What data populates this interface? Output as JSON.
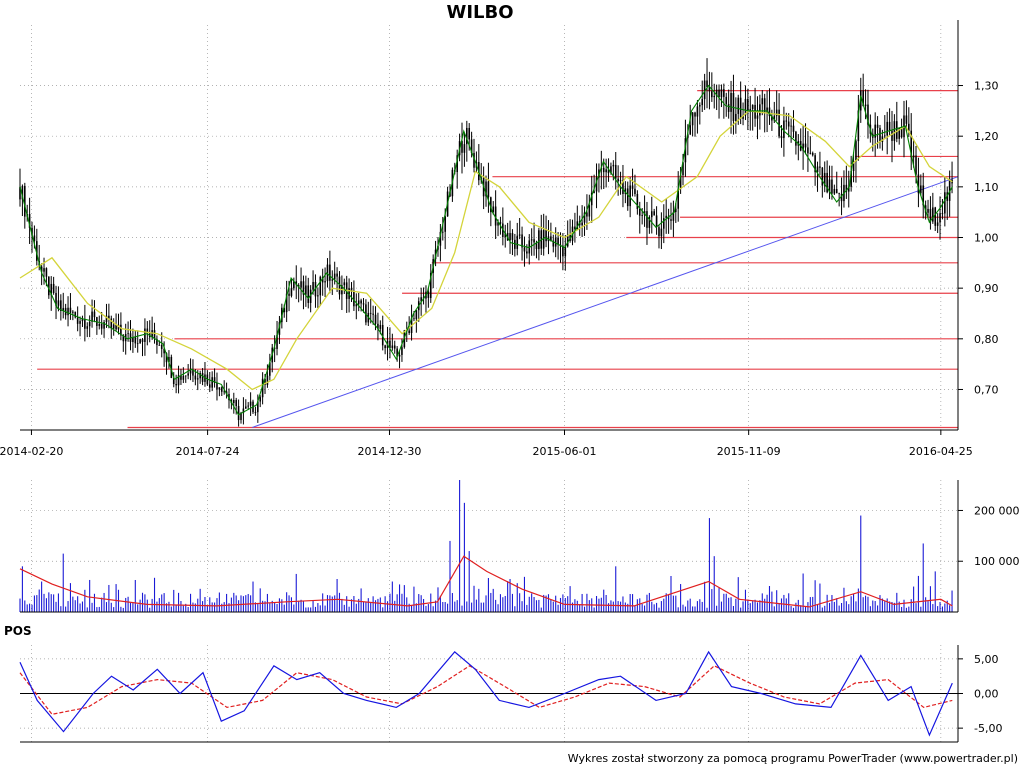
{
  "chart_data": {
    "type": "candlestick",
    "title": "WILBO",
    "price_axis": {
      "ticks": [
        "0,70",
        "0,80",
        "0,90",
        "1,00",
        "1,10",
        "1,20",
        "1,30"
      ],
      "tick_values": [
        0.7,
        0.8,
        0.9,
        1.0,
        1.1,
        1.2,
        1.3
      ],
      "range": [
        0.62,
        1.38
      ]
    },
    "date_axis": {
      "ticks": [
        "2014-02-20",
        "2014-07-24",
        "2014-12-30",
        "2015-06-01",
        "2015-11-09",
        "2016-04-25"
      ],
      "range": [
        "2014-02-10",
        "2016-05-10"
      ]
    },
    "price_series": [
      [
        "2014-02-10",
        1.1
      ],
      [
        "2014-03-01",
        0.93
      ],
      [
        "2014-03-15",
        0.86
      ],
      [
        "2014-04-05",
        0.84
      ],
      [
        "2014-04-25",
        0.83
      ],
      [
        "2014-05-15",
        0.8
      ],
      [
        "2014-06-01",
        0.81
      ],
      [
        "2014-06-15",
        0.79
      ],
      [
        "2014-06-25",
        0.72
      ],
      [
        "2014-07-10",
        0.74
      ],
      [
        "2014-07-24",
        0.72
      ],
      [
        "2014-08-05",
        0.71
      ],
      [
        "2014-08-20",
        0.65
      ],
      [
        "2014-09-05",
        0.67
      ],
      [
        "2014-09-20",
        0.78
      ],
      [
        "2014-10-05",
        0.92
      ],
      [
        "2014-10-20",
        0.88
      ],
      [
        "2014-11-05",
        0.93
      ],
      [
        "2014-11-20",
        0.9
      ],
      [
        "2014-12-05",
        0.86
      ],
      [
        "2014-12-20",
        0.82
      ],
      [
        "2015-01-05",
        0.76
      ],
      [
        "2015-01-20",
        0.85
      ],
      [
        "2015-02-01",
        0.89
      ],
      [
        "2015-02-20",
        1.08
      ],
      [
        "2015-03-05",
        1.21
      ],
      [
        "2015-03-15",
        1.15
      ],
      [
        "2015-03-30",
        1.05
      ],
      [
        "2015-04-15",
        0.99
      ],
      [
        "2015-05-01",
        0.98
      ],
      [
        "2015-05-15",
        1.0
      ],
      [
        "2015-06-01",
        0.98
      ],
      [
        "2015-06-20",
        1.05
      ],
      [
        "2015-07-05",
        1.15
      ],
      [
        "2015-07-20",
        1.1
      ],
      [
        "2015-08-05",
        1.06
      ],
      [
        "2015-08-20",
        1.02
      ],
      [
        "2015-09-05",
        1.05
      ],
      [
        "2015-09-20",
        1.25
      ],
      [
        "2015-10-05",
        1.3
      ],
      [
        "2015-10-20",
        1.26
      ],
      [
        "2015-11-09",
        1.25
      ],
      [
        "2015-11-25",
        1.25
      ],
      [
        "2015-12-10",
        1.21
      ],
      [
        "2015-12-25",
        1.18
      ],
      [
        "2016-01-10",
        1.12
      ],
      [
        "2016-01-25",
        1.07
      ],
      [
        "2016-02-05",
        1.1
      ],
      [
        "2016-02-15",
        1.28
      ],
      [
        "2016-02-25",
        1.2
      ],
      [
        "2016-03-10",
        1.21
      ],
      [
        "2016-03-25",
        1.22
      ],
      [
        "2016-04-05",
        1.1
      ],
      [
        "2016-04-15",
        1.03
      ],
      [
        "2016-04-25",
        1.06
      ],
      [
        "2016-05-05",
        1.1
      ]
    ],
    "moving_average": [
      [
        "2014-02-10",
        0.92
      ],
      [
        "2014-03-10",
        0.96
      ],
      [
        "2014-04-10",
        0.87
      ],
      [
        "2014-05-10",
        0.82
      ],
      [
        "2014-06-10",
        0.81
      ],
      [
        "2014-07-10",
        0.78
      ],
      [
        "2014-08-10",
        0.74
      ],
      [
        "2014-09-01",
        0.7
      ],
      [
        "2014-09-20",
        0.72
      ],
      [
        "2014-10-10",
        0.8
      ],
      [
        "2014-11-10",
        0.9
      ],
      [
        "2014-12-10",
        0.89
      ],
      [
        "2015-01-10",
        0.81
      ],
      [
        "2015-02-05",
        0.86
      ],
      [
        "2015-02-25",
        0.97
      ],
      [
        "2015-03-15",
        1.13
      ],
      [
        "2015-04-05",
        1.1
      ],
      [
        "2015-05-01",
        1.03
      ],
      [
        "2015-06-01",
        1.0
      ],
      [
        "2015-07-01",
        1.04
      ],
      [
        "2015-07-25",
        1.12
      ],
      [
        "2015-08-25",
        1.07
      ],
      [
        "2015-09-25",
        1.12
      ],
      [
        "2015-10-15",
        1.2
      ],
      [
        "2015-11-09",
        1.25
      ],
      [
        "2015-12-15",
        1.24
      ],
      [
        "2016-01-15",
        1.19
      ],
      [
        "2016-02-05",
        1.14
      ],
      [
        "2016-02-25",
        1.18
      ],
      [
        "2016-03-25",
        1.22
      ],
      [
        "2016-04-15",
        1.14
      ],
      [
        "2016-05-05",
        1.11
      ]
    ],
    "horizontal_levels": [
      {
        "value": 0.625,
        "from": "2014-05-15",
        "to": "2016-05-10"
      },
      {
        "value": 0.74,
        "from": "2014-02-25",
        "to": "2016-05-10"
      },
      {
        "value": 0.8,
        "from": "2014-06-25",
        "to": "2016-05-10"
      },
      {
        "value": 0.89,
        "from": "2015-01-10",
        "to": "2016-05-10"
      },
      {
        "value": 0.95,
        "from": "2015-02-05",
        "to": "2016-05-10"
      },
      {
        "value": 1.0,
        "from": "2015-07-25",
        "to": "2016-05-10"
      },
      {
        "value": 1.04,
        "from": "2015-09-10",
        "to": "2016-05-10"
      },
      {
        "value": 1.12,
        "from": "2015-03-30",
        "to": "2016-05-10"
      },
      {
        "value": 1.16,
        "from": "2016-02-10",
        "to": "2016-05-10"
      },
      {
        "value": 1.29,
        "from": "2015-09-25",
        "to": "2016-05-10"
      }
    ],
    "trendline": {
      "from": [
        "2014-09-01",
        0.625
      ],
      "to": [
        "2016-05-10",
        1.12
      ]
    },
    "volume": {
      "axis_ticks": [
        "100 000",
        "200 000"
      ],
      "tick_values": [
        100000,
        200000
      ],
      "range": [
        0,
        260000
      ],
      "peaks": [
        [
          "2014-02-12",
          90000
        ],
        [
          "2014-02-28",
          60000
        ],
        [
          "2014-03-20",
          115000
        ],
        [
          "2014-05-05",
          55000
        ],
        [
          "2014-09-01",
          60000
        ],
        [
          "2014-10-10",
          75000
        ],
        [
          "2014-11-15",
          65000
        ],
        [
          "2015-01-20",
          50000
        ],
        [
          "2015-02-20",
          140000
        ],
        [
          "2015-03-01",
          260000
        ],
        [
          "2015-03-05",
          215000
        ],
        [
          "2015-03-10",
          120000
        ],
        [
          "2015-04-15",
          65000
        ],
        [
          "2015-07-15",
          90000
        ],
        [
          "2015-10-05",
          185000
        ],
        [
          "2015-10-10",
          110000
        ],
        [
          "2016-02-15",
          190000
        ],
        [
          "2016-04-10",
          135000
        ],
        [
          "2016-04-20",
          80000
        ]
      ],
      "average": [
        [
          "2014-02-10",
          85000
        ],
        [
          "2014-03-10",
          55000
        ],
        [
          "2014-04-10",
          30000
        ],
        [
          "2014-06-01",
          15000
        ],
        [
          "2014-08-01",
          12000
        ],
        [
          "2014-10-01",
          20000
        ],
        [
          "2014-11-15",
          25000
        ],
        [
          "2015-01-15",
          12000
        ],
        [
          "2015-02-10",
          20000
        ],
        [
          "2015-03-05",
          110000
        ],
        [
          "2015-03-25",
          80000
        ],
        [
          "2015-04-25",
          45000
        ],
        [
          "2015-06-01",
          15000
        ],
        [
          "2015-08-01",
          12000
        ],
        [
          "2015-10-05",
          60000
        ],
        [
          "2015-11-01",
          25000
        ],
        [
          "2016-01-01",
          10000
        ],
        [
          "2016-02-15",
          40000
        ],
        [
          "2016-03-15",
          15000
        ],
        [
          "2016-04-25",
          25000
        ],
        [
          "2016-05-05",
          12000
        ]
      ]
    },
    "indicator": {
      "name": "POS",
      "axis_ticks": [
        "-5,00",
        "0,00",
        "5,00"
      ],
      "tick_values": [
        -5,
        0,
        5
      ],
      "range": [
        -7,
        7
      ],
      "series": [
        [
          "2014-02-10",
          4.5
        ],
        [
          "2014-02-25",
          -1.0
        ],
        [
          "2014-03-20",
          -5.5
        ],
        [
          "2014-04-15",
          0.0
        ],
        [
          "2014-05-01",
          2.5
        ],
        [
          "2014-05-20",
          0.5
        ],
        [
          "2014-06-10",
          3.5
        ],
        [
          "2014-06-30",
          0.0
        ],
        [
          "2014-07-20",
          3.0
        ],
        [
          "2014-08-05",
          -4.0
        ],
        [
          "2014-08-25",
          -2.5
        ],
        [
          "2014-09-20",
          4.0
        ],
        [
          "2014-10-10",
          2.0
        ],
        [
          "2014-10-30",
          3.0
        ],
        [
          "2014-11-20",
          0.0
        ],
        [
          "2014-12-10",
          -1.0
        ],
        [
          "2015-01-05",
          -2.0
        ],
        [
          "2015-01-25",
          0.0
        ],
        [
          "2015-02-25",
          6.0
        ],
        [
          "2015-03-15",
          3.5
        ],
        [
          "2015-04-05",
          -1.0
        ],
        [
          "2015-05-01",
          -2.0
        ],
        [
          "2015-06-01",
          0.0
        ],
        [
          "2015-07-01",
          2.0
        ],
        [
          "2015-07-20",
          2.5
        ],
        [
          "2015-08-20",
          -1.0
        ],
        [
          "2015-09-15",
          0.0
        ],
        [
          "2015-10-05",
          6.0
        ],
        [
          "2015-10-25",
          1.0
        ],
        [
          "2015-11-20",
          0.0
        ],
        [
          "2015-12-20",
          -1.5
        ],
        [
          "2016-01-20",
          -2.0
        ],
        [
          "2016-02-15",
          5.5
        ],
        [
          "2016-03-10",
          -1.0
        ],
        [
          "2016-03-30",
          1.0
        ],
        [
          "2016-04-15",
          -6.0
        ],
        [
          "2016-05-05",
          1.5
        ]
      ],
      "signal": [
        [
          "2014-02-10",
          3.0
        ],
        [
          "2014-03-10",
          -3.0
        ],
        [
          "2014-04-10",
          -2.0
        ],
        [
          "2014-05-10",
          1.0
        ],
        [
          "2014-06-10",
          2.0
        ],
        [
          "2014-07-10",
          1.5
        ],
        [
          "2014-08-10",
          -2.0
        ],
        [
          "2014-09-10",
          -1.0
        ],
        [
          "2014-10-10",
          3.0
        ],
        [
          "2014-11-10",
          2.0
        ],
        [
          "2014-12-10",
          -0.5
        ],
        [
          "2015-01-10",
          -1.5
        ],
        [
          "2015-02-10",
          1.0
        ],
        [
          "2015-03-10",
          4.0
        ],
        [
          "2015-04-10",
          1.0
        ],
        [
          "2015-05-10",
          -2.0
        ],
        [
          "2015-06-10",
          -0.5
        ],
        [
          "2015-07-10",
          1.5
        ],
        [
          "2015-08-10",
          1.0
        ],
        [
          "2015-09-10",
          -0.5
        ],
        [
          "2015-10-10",
          4.0
        ],
        [
          "2015-11-10",
          1.5
        ],
        [
          "2015-12-10",
          -0.5
        ],
        [
          "2016-01-10",
          -1.5
        ],
        [
          "2016-02-10",
          1.5
        ],
        [
          "2016-03-10",
          2.0
        ],
        [
          "2016-04-10",
          -2.0
        ],
        [
          "2016-05-05",
          -1.0
        ]
      ]
    }
  },
  "footer": "Wykres został stworzony za pomocą programu PowerTrader (www.powertrader.pl)",
  "colors": {
    "candle": "#000000",
    "price_line": "#008000",
    "moving_average": "#d4d43a",
    "levels": "#e8404a",
    "trendline": "#5555ee",
    "volume_bar": "#1a1ad6",
    "volume_avg": "#e02020",
    "indicator": "#1515e0",
    "signal": "#e02020",
    "grid": "#999999"
  }
}
